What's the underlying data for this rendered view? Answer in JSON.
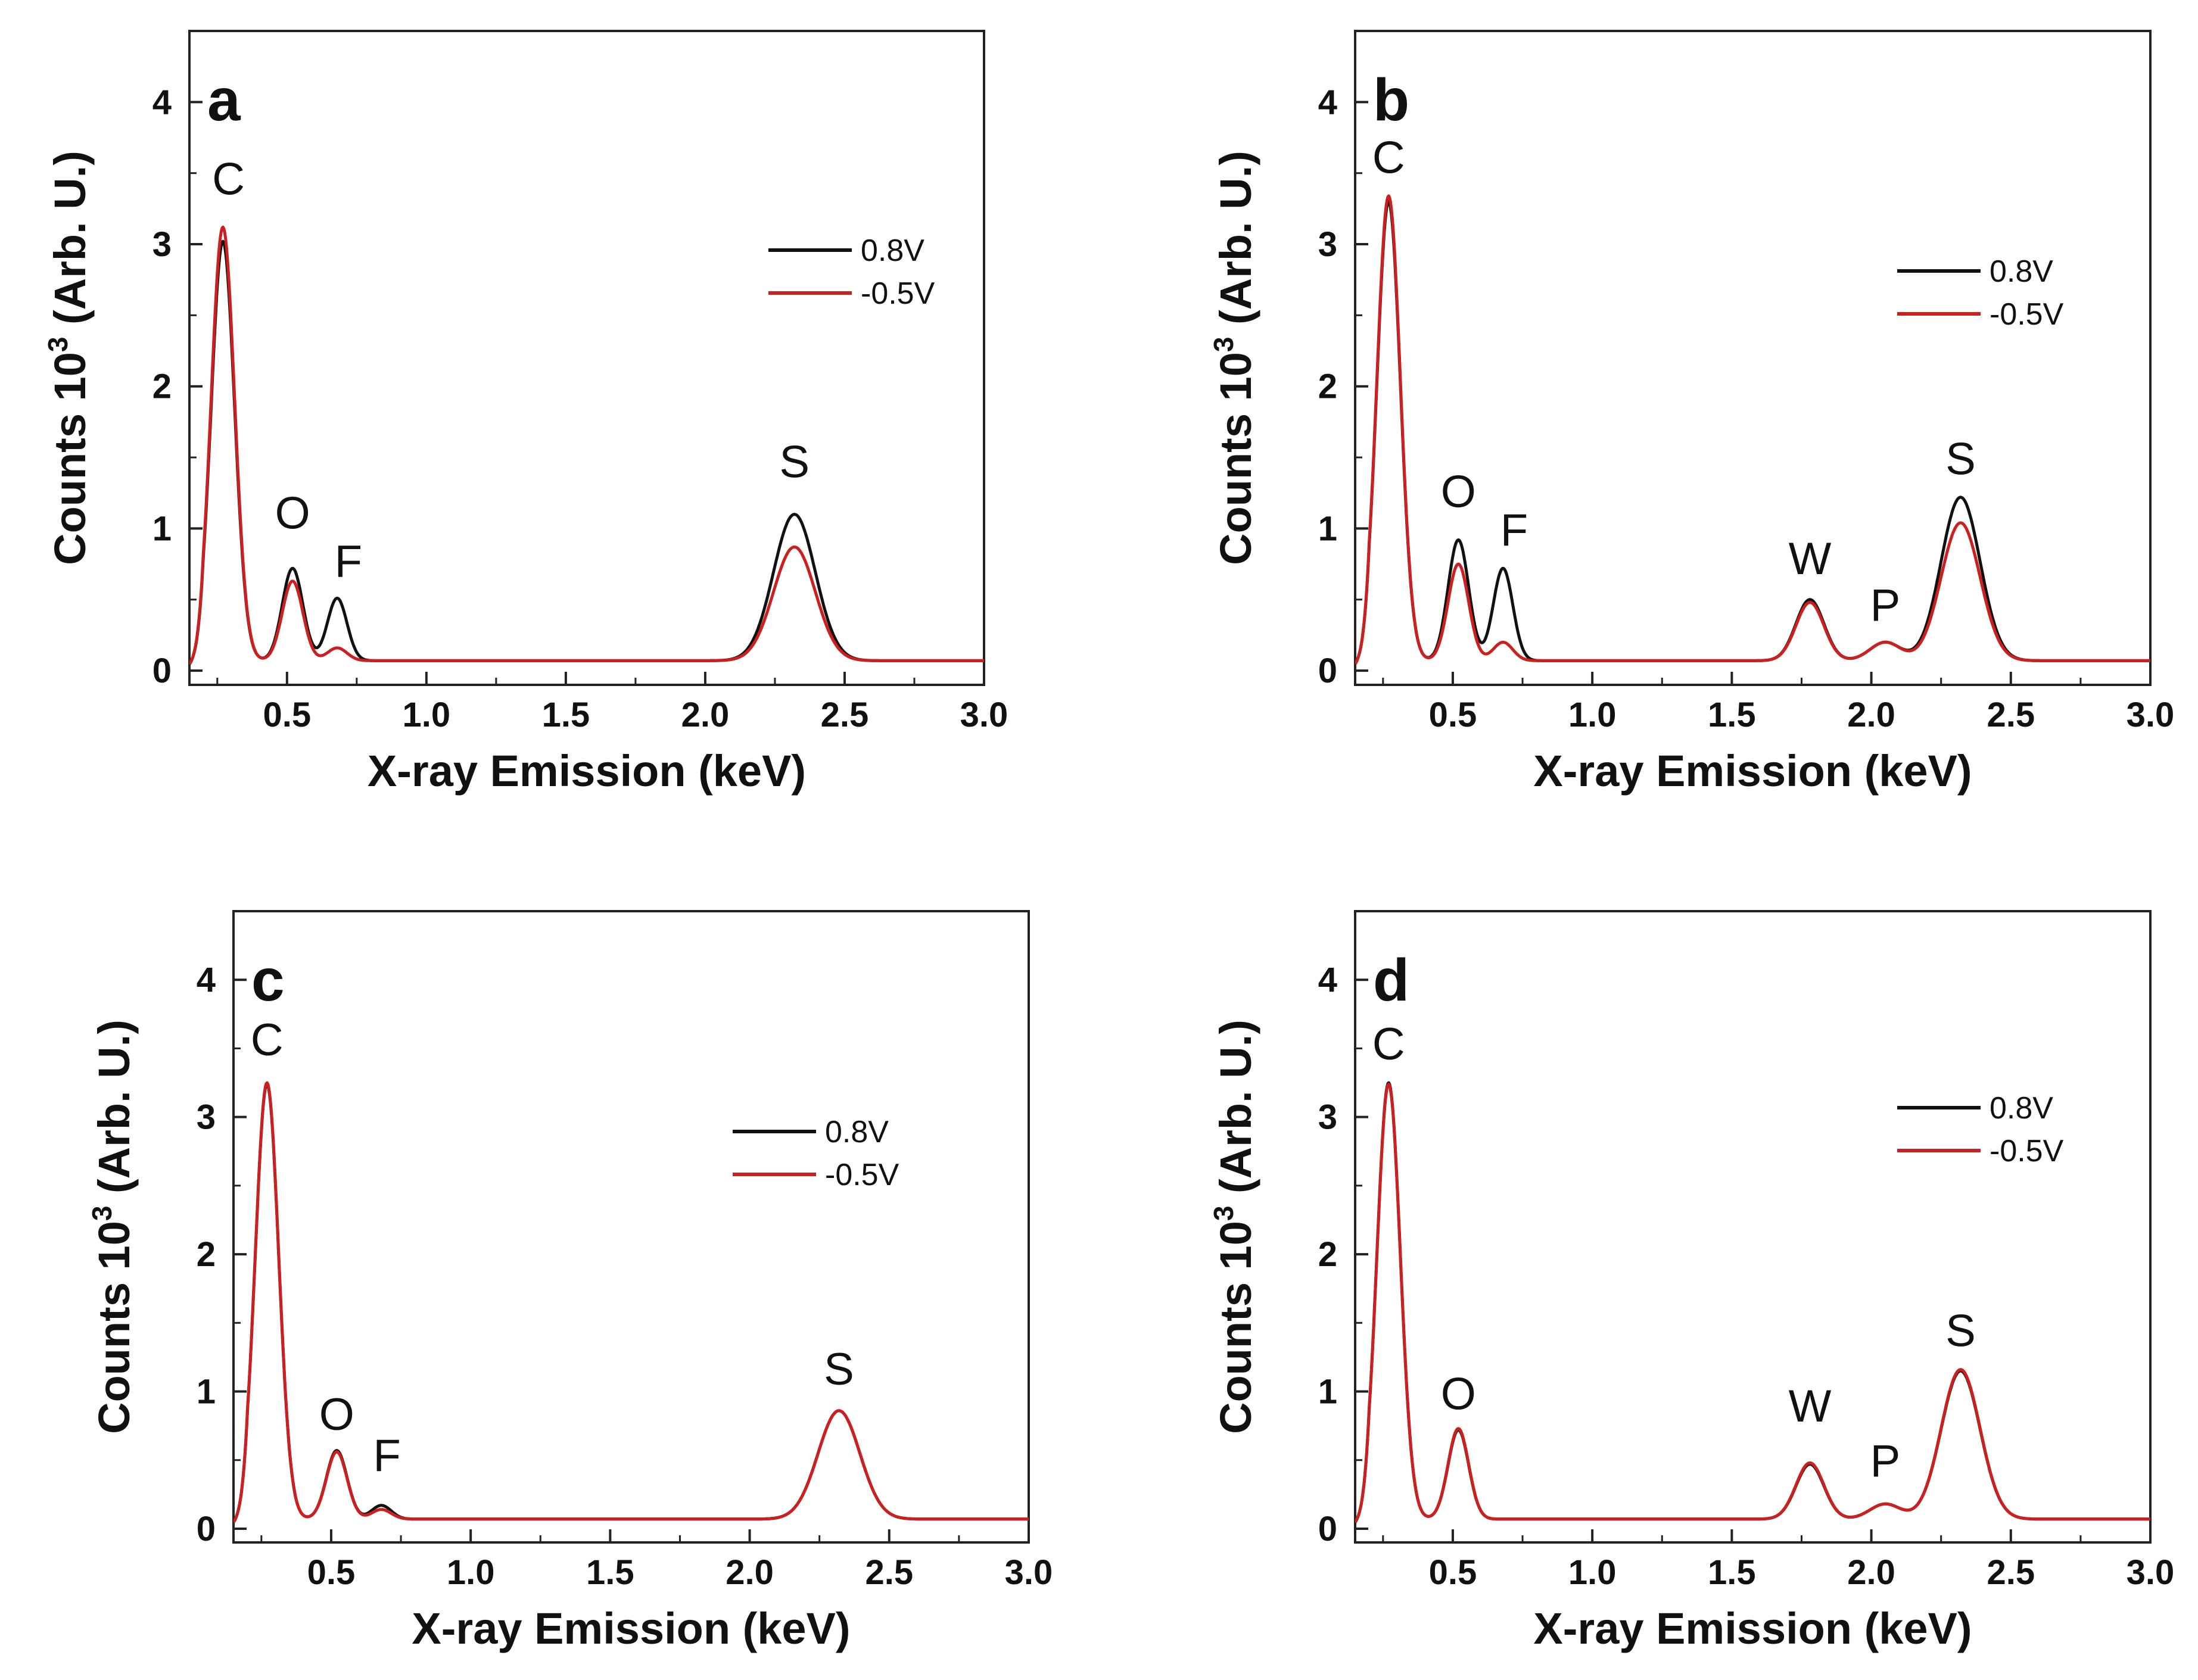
{
  "chart_data": [
    {
      "type": "line",
      "panel": "a",
      "xlabel": "X-ray Emission (keV)",
      "ylabel": "Counts 10^3 (Arb. U.)",
      "ylabel_main": "Counts 10",
      "ylabel_sup": "3",
      "ylabel_rest": " (Arb. U.)",
      "xlim": [
        0.15,
        3.0
      ],
      "ylim": [
        -0.1,
        4.5
      ],
      "xticks": [
        "0.5",
        "1.0",
        "1.5",
        "2.0",
        "2.5",
        "3.0"
      ],
      "yticks": [
        "0",
        "1",
        "2",
        "3",
        "4"
      ],
      "legend": [
        "0.8V",
        "-0.5V"
      ],
      "series": [
        {
          "name": "0.8V",
          "color": "#111111",
          "baseline": 0.07,
          "peaks": [
            {
              "x": 0.27,
              "h": 2.95,
              "w": 0.042
            },
            {
              "x": 0.52,
              "h": 0.65,
              "w": 0.037
            },
            {
              "x": 0.68,
              "h": 0.44,
              "w": 0.035
            },
            {
              "x": 2.32,
              "h": 1.03,
              "w": 0.075
            }
          ]
        },
        {
          "name": "-0.5V",
          "color": "#cc1f1f",
          "baseline": 0.07,
          "peaks": [
            {
              "x": 0.27,
              "h": 3.05,
              "w": 0.042
            },
            {
              "x": 0.52,
              "h": 0.56,
              "w": 0.037
            },
            {
              "x": 0.68,
              "h": 0.09,
              "w": 0.035
            },
            {
              "x": 2.32,
              "h": 0.8,
              "w": 0.075
            }
          ]
        }
      ],
      "peak_labels": [
        {
          "text": "C",
          "x": 0.29,
          "y": 3.35
        },
        {
          "text": "O",
          "x": 0.52,
          "y": 1.0
        },
        {
          "text": "F",
          "x": 0.72,
          "y": 0.66
        },
        {
          "text": "S",
          "x": 2.32,
          "y": 1.36
        }
      ]
    },
    {
      "type": "line",
      "panel": "b",
      "xlabel": "X-ray Emission (keV)",
      "ylabel": "Counts 10^3 (Arb. U.)",
      "ylabel_main": "Counts 10",
      "ylabel_sup": "3",
      "ylabel_rest": " (Arb. U.)",
      "xlim": [
        0.15,
        3.0
      ],
      "ylim": [
        -0.1,
        4.5
      ],
      "xticks": [
        "0.5",
        "1.0",
        "1.5",
        "2.0",
        "2.5",
        "3.0"
      ],
      "yticks": [
        "0",
        "1",
        "2",
        "3",
        "4"
      ],
      "legend": [
        "0.8V",
        "-0.5V"
      ],
      "series": [
        {
          "name": "0.8V",
          "color": "#111111",
          "baseline": 0.07,
          "peaks": [
            {
              "x": 0.27,
              "h": 3.23,
              "w": 0.042
            },
            {
              "x": 0.52,
              "h": 0.85,
              "w": 0.037
            },
            {
              "x": 0.68,
              "h": 0.65,
              "w": 0.035
            },
            {
              "x": 1.78,
              "h": 0.43,
              "w": 0.05
            },
            {
              "x": 2.05,
              "h": 0.13,
              "w": 0.055
            },
            {
              "x": 2.32,
              "h": 1.15,
              "w": 0.07
            }
          ]
        },
        {
          "name": "-0.5V",
          "color": "#cc1f1f",
          "baseline": 0.07,
          "peaks": [
            {
              "x": 0.27,
              "h": 3.27,
              "w": 0.042
            },
            {
              "x": 0.52,
              "h": 0.68,
              "w": 0.037
            },
            {
              "x": 0.68,
              "h": 0.13,
              "w": 0.035
            },
            {
              "x": 1.78,
              "h": 0.41,
              "w": 0.05
            },
            {
              "x": 2.05,
              "h": 0.13,
              "w": 0.055
            },
            {
              "x": 2.32,
              "h": 0.97,
              "w": 0.07
            }
          ]
        }
      ],
      "peak_labels": [
        {
          "text": "C",
          "x": 0.27,
          "y": 3.5
        },
        {
          "text": "O",
          "x": 0.52,
          "y": 1.15
        },
        {
          "text": "F",
          "x": 0.72,
          "y": 0.88
        },
        {
          "text": "W",
          "x": 1.78,
          "y": 0.68
        },
        {
          "text": "P",
          "x": 2.05,
          "y": 0.35
        },
        {
          "text": "S",
          "x": 2.32,
          "y": 1.38
        }
      ]
    },
    {
      "type": "line",
      "panel": "c",
      "xlabel": "X-ray Emission (keV)",
      "ylabel": "Counts 10^3 (Arb. U.)",
      "ylabel_main": "Counts 10",
      "ylabel_sup": "3",
      "ylabel_rest": " (Arb. U.)",
      "xlim": [
        0.15,
        3.0
      ],
      "ylim": [
        -0.1,
        4.5
      ],
      "xticks": [
        "0.5",
        "1.0",
        "1.5",
        "2.0",
        "2.5",
        "3.0"
      ],
      "yticks": [
        "0",
        "1",
        "2",
        "3",
        "4"
      ],
      "legend": [
        "0.8V",
        "-0.5V"
      ],
      "series": [
        {
          "name": "0.8V",
          "color": "#111111",
          "baseline": 0.07,
          "peaks": [
            {
              "x": 0.27,
              "h": 3.17,
              "w": 0.042
            },
            {
              "x": 0.52,
              "h": 0.5,
              "w": 0.037
            },
            {
              "x": 0.68,
              "h": 0.1,
              "w": 0.035
            },
            {
              "x": 2.32,
              "h": 0.79,
              "w": 0.075
            }
          ]
        },
        {
          "name": "-0.5V",
          "color": "#cc1f1f",
          "baseline": 0.07,
          "peaks": [
            {
              "x": 0.27,
              "h": 3.18,
              "w": 0.042
            },
            {
              "x": 0.52,
              "h": 0.49,
              "w": 0.037
            },
            {
              "x": 0.68,
              "h": 0.07,
              "w": 0.035
            },
            {
              "x": 2.32,
              "h": 0.79,
              "w": 0.075
            }
          ]
        }
      ],
      "peak_labels": [
        {
          "text": "C",
          "x": 0.27,
          "y": 3.45
        },
        {
          "text": "O",
          "x": 0.52,
          "y": 0.72
        },
        {
          "text": "F",
          "x": 0.7,
          "y": 0.42
        },
        {
          "text": "S",
          "x": 2.32,
          "y": 1.05
        }
      ]
    },
    {
      "type": "line",
      "panel": "d",
      "xlabel": "X-ray Emission (keV)",
      "ylabel": "Counts 10^3 (Arb. U.)",
      "ylabel_main": "Counts 10",
      "ylabel_sup": "3",
      "ylabel_rest": " (Arb. U.)",
      "xlim": [
        0.15,
        3.0
      ],
      "ylim": [
        -0.1,
        4.5
      ],
      "xticks": [
        "0.5",
        "1.0",
        "1.5",
        "2.0",
        "2.5",
        "3.0"
      ],
      "yticks": [
        "0",
        "1",
        "2",
        "3",
        "4"
      ],
      "legend": [
        "0.8V",
        "-0.5V"
      ],
      "series": [
        {
          "name": "0.8V",
          "color": "#111111",
          "baseline": 0.07,
          "peaks": [
            {
              "x": 0.27,
              "h": 3.18,
              "w": 0.042
            },
            {
              "x": 0.52,
              "h": 0.65,
              "w": 0.037
            },
            {
              "x": 1.78,
              "h": 0.4,
              "w": 0.05
            },
            {
              "x": 2.05,
              "h": 0.11,
              "w": 0.055
            },
            {
              "x": 2.32,
              "h": 1.08,
              "w": 0.07
            }
          ]
        },
        {
          "name": "-0.5V",
          "color": "#cc1f1f",
          "baseline": 0.07,
          "peaks": [
            {
              "x": 0.27,
              "h": 3.17,
              "w": 0.042
            },
            {
              "x": 0.52,
              "h": 0.66,
              "w": 0.037
            },
            {
              "x": 1.78,
              "h": 0.41,
              "w": 0.05
            },
            {
              "x": 2.05,
              "h": 0.11,
              "w": 0.055
            },
            {
              "x": 2.32,
              "h": 1.09,
              "w": 0.07
            }
          ]
        }
      ],
      "peak_labels": [
        {
          "text": "C",
          "x": 0.27,
          "y": 3.42
        },
        {
          "text": "O",
          "x": 0.52,
          "y": 0.87
        },
        {
          "text": "W",
          "x": 1.78,
          "y": 0.78
        },
        {
          "text": "P",
          "x": 2.05,
          "y": 0.38
        },
        {
          "text": "S",
          "x": 2.32,
          "y": 1.33
        }
      ]
    }
  ]
}
